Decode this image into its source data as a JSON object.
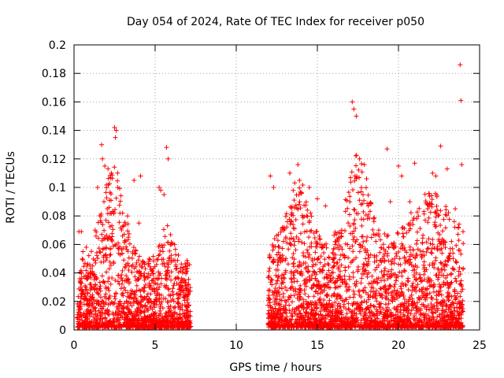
{
  "chart_data": {
    "type": "scatter",
    "title": "Day 054 of 2024, Rate Of TEC Index for receiver p050",
    "xlabel": "GPS time / hours",
    "ylabel": "ROTI / TECUs",
    "xlim": [
      0,
      25
    ],
    "ylim": [
      0,
      0.2
    ],
    "xticks": [
      0,
      5,
      10,
      15,
      20,
      25
    ],
    "xtick_labels": [
      "0",
      "5",
      "10",
      "15",
      "20",
      "25"
    ],
    "yticks": [
      0,
      0.02,
      0.04,
      0.06,
      0.08,
      0.1,
      0.12,
      0.14,
      0.16,
      0.18,
      0.2
    ],
    "ytick_labels": [
      "0",
      "0.02",
      "0.04",
      "0.06",
      "0.08",
      "0.1",
      "0.12",
      "0.14",
      "0.16",
      "0.18",
      "0.2"
    ],
    "grid": true,
    "marker": "+",
    "series": [
      {
        "name": "ROTI",
        "color": "#ff0000",
        "segments": [
          [
            0.2,
            7.2
          ],
          [
            11.95,
            24.0
          ]
        ],
        "x": [
          0.3,
          0.45,
          0.55,
          0.75,
          1.0,
          1.3,
          1.45,
          1.7,
          1.75,
          1.9,
          2.05,
          2.3,
          2.5,
          2.55,
          2.6,
          2.7,
          3.3,
          3.7,
          4.0,
          4.1,
          5.25,
          5.35,
          5.55,
          5.7,
          5.8,
          6.2,
          7.0,
          12.1,
          12.3,
          13.3,
          13.8,
          13.9,
          14.5,
          15.0,
          15.5,
          16.1,
          16.5,
          17.0,
          17.15,
          17.25,
          17.4,
          17.6,
          17.9,
          19.3,
          19.5,
          20.0,
          20.2,
          20.7,
          21.0,
          21.8,
          22.1,
          22.3,
          22.6,
          23.0,
          23.5,
          23.8,
          23.85,
          23.9
        ],
        "y": [
          0.069,
          0.069,
          0.055,
          0.058,
          0.04,
          0.07,
          0.1,
          0.13,
          0.12,
          0.115,
          0.085,
          0.11,
          0.142,
          0.135,
          0.14,
          0.1,
          0.08,
          0.105,
          0.075,
          0.108,
          0.1,
          0.098,
          0.095,
          0.128,
          0.12,
          0.06,
          0.047,
          0.108,
          0.1,
          0.11,
          0.116,
          0.105,
          0.1,
          0.092,
          0.087,
          0.06,
          0.07,
          0.09,
          0.16,
          0.155,
          0.15,
          0.12,
          0.116,
          0.127,
          0.09,
          0.115,
          0.108,
          0.09,
          0.117,
          0.085,
          0.11,
          0.108,
          0.129,
          0.113,
          0.085,
          0.186,
          0.161,
          0.116
        ]
      }
    ]
  }
}
